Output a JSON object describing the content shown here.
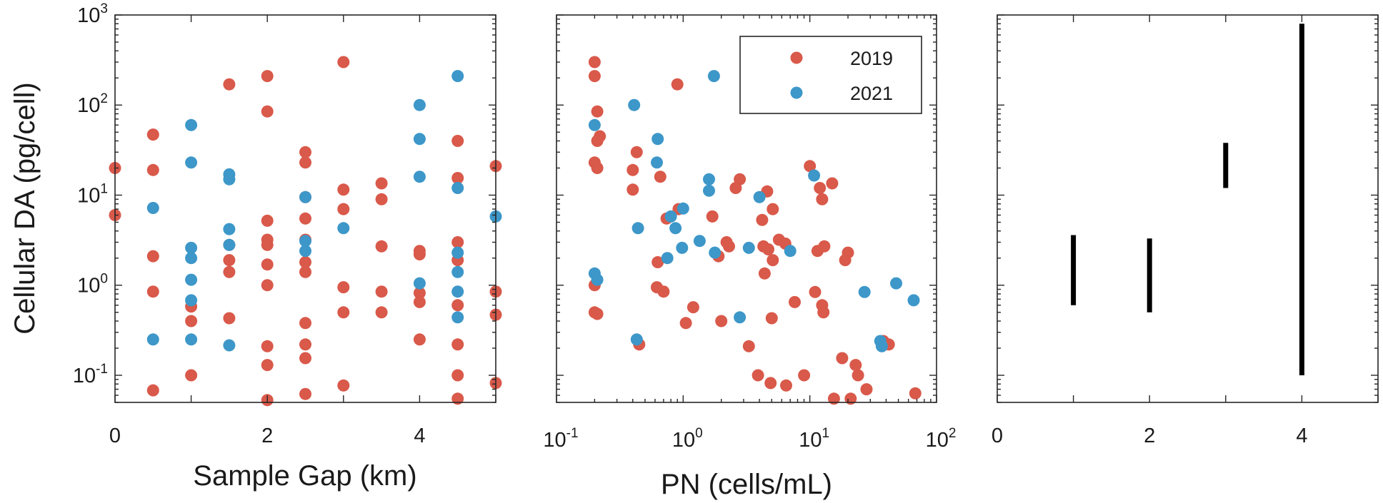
{
  "colors": {
    "2019": "#d9594a",
    "2021": "#3d97c9",
    "bar": "#000000",
    "axis": "#262626"
  },
  "legend": {
    "entries": [
      "2019",
      "2021"
    ],
    "placement": "top-right of middle panel"
  },
  "chart_data": [
    {
      "type": "scatter",
      "xlabel": "Sample Gap (km)",
      "ylabel": "Cellular DA (pg/cell)",
      "xlim": [
        0,
        5
      ],
      "ylim": [
        0.05,
        1000
      ],
      "yscale": "log",
      "xticks": [
        0,
        2,
        4
      ],
      "xtick_labels": [
        "0",
        "2",
        "4"
      ],
      "yticks": [
        0.1,
        1,
        10,
        100,
        1000
      ],
      "ytick_labels": [
        [
          "10",
          "-1"
        ],
        [
          "10",
          "0"
        ],
        [
          "10",
          "1"
        ],
        [
          "10",
          "2"
        ],
        [
          "10",
          "3"
        ]
      ],
      "series": [
        {
          "name": "2019",
          "points": [
            [
              0,
              20
            ],
            [
              0,
              6
            ],
            [
              0.5,
              47
            ],
            [
              0.5,
              19
            ],
            [
              0.5,
              2.1
            ],
            [
              0.5,
              0.85
            ],
            [
              0.5,
              0.068
            ],
            [
              1,
              0.58
            ],
            [
              1,
              0.4
            ],
            [
              1,
              0.1
            ],
            [
              1.5,
              170
            ],
            [
              1.5,
              2.8
            ],
            [
              1.5,
              1.9
            ],
            [
              1.5,
              1.4
            ],
            [
              1.5,
              0.43
            ],
            [
              2,
              210
            ],
            [
              2,
              85
            ],
            [
              2,
              5.2
            ],
            [
              2,
              3.2
            ],
            [
              2,
              2.8
            ],
            [
              2,
              1.7
            ],
            [
              2,
              1.0
            ],
            [
              2,
              0.21
            ],
            [
              2,
              0.13
            ],
            [
              2,
              0.053
            ],
            [
              2.5,
              30
            ],
            [
              2.5,
              23
            ],
            [
              2.5,
              9.5
            ],
            [
              2.5,
              5.5
            ],
            [
              2.5,
              3.2
            ],
            [
              2.5,
              1.8
            ],
            [
              2.5,
              1.4
            ],
            [
              2.5,
              0.38
            ],
            [
              2.5,
              0.22
            ],
            [
              2.5,
              0.155
            ],
            [
              2.5,
              0.062
            ],
            [
              3,
              300
            ],
            [
              3,
              11.5
            ],
            [
              3,
              7
            ],
            [
              3,
              0.95
            ],
            [
              3,
              0.5
            ],
            [
              3,
              0.077
            ],
            [
              3.5,
              13.5
            ],
            [
              3.5,
              9
            ],
            [
              3.5,
              2.7
            ],
            [
              3.5,
              0.85
            ],
            [
              3.5,
              0.5
            ],
            [
              4,
              2.4
            ],
            [
              4,
              2.2
            ],
            [
              4,
              0.82
            ],
            [
              4,
              0.65
            ],
            [
              4,
              0.25
            ],
            [
              4.5,
              40
            ],
            [
              4.5,
              15.5
            ],
            [
              4.5,
              3
            ],
            [
              4.5,
              1.9
            ],
            [
              4.5,
              0.6
            ],
            [
              4.5,
              0.22
            ],
            [
              4.5,
              0.1
            ],
            [
              4.5,
              0.055
            ],
            [
              5,
              21
            ],
            [
              5,
              0.85
            ],
            [
              5,
              0.47
            ],
            [
              5,
              0.082
            ]
          ]
        },
        {
          "name": "2021",
          "points": [
            [
              0.5,
              7.2
            ],
            [
              0.5,
              0.25
            ],
            [
              1,
              60
            ],
            [
              1,
              23
            ],
            [
              1,
              2.6
            ],
            [
              1,
              2.0
            ],
            [
              1,
              1.15
            ],
            [
              1,
              0.68
            ],
            [
              1,
              0.25
            ],
            [
              1.5,
              17
            ],
            [
              1.5,
              15
            ],
            [
              1.5,
              4.2
            ],
            [
              1.5,
              2.8
            ],
            [
              1.5,
              0.215
            ],
            [
              2.5,
              9.5
            ],
            [
              2.5,
              3.1
            ],
            [
              2.5,
              2.4
            ],
            [
              3,
              4.3
            ],
            [
              4,
              100
            ],
            [
              4,
              42
            ],
            [
              4,
              16
            ],
            [
              4,
              1.05
            ],
            [
              4.5,
              210
            ],
            [
              4.5,
              12
            ],
            [
              4.5,
              2.3
            ],
            [
              4.5,
              1.4
            ],
            [
              4.5,
              0.85
            ],
            [
              4.5,
              0.44
            ],
            [
              5,
              5.8
            ]
          ]
        }
      ]
    },
    {
      "type": "scatter",
      "xlabel": "PN (cells/mL)",
      "ylabel": "",
      "xscale": "log",
      "xlim": [
        0.1,
        100
      ],
      "ylim": [
        0.05,
        1000
      ],
      "yscale": "log",
      "xticks": [
        0.1,
        1,
        10,
        100
      ],
      "xtick_labels": [
        [
          "10",
          "-1"
        ],
        [
          "10",
          "0"
        ],
        [
          "10",
          "1"
        ],
        [
          "10",
          "2"
        ]
      ],
      "series": [
        {
          "name": "2019",
          "points": [
            [
              0.2,
              300
            ],
            [
              0.2,
              210
            ],
            [
              0.21,
              85
            ],
            [
              0.22,
              45
            ],
            [
              0.21,
              40
            ],
            [
              0.2,
              23
            ],
            [
              0.21,
              20
            ],
            [
              0.2,
              1.0
            ],
            [
              0.2,
              0.5
            ],
            [
              0.21,
              0.48
            ],
            [
              0.4,
              19
            ],
            [
              0.4,
              11.5
            ],
            [
              0.43,
              30
            ],
            [
              0.45,
              0.22
            ],
            [
              0.62,
              0.95
            ],
            [
              0.63,
              1.8
            ],
            [
              0.66,
              16
            ],
            [
              0.7,
              0.85
            ],
            [
              0.74,
              5.5
            ],
            [
              0.9,
              170
            ],
            [
              0.92,
              7
            ],
            [
              1.05,
              0.38
            ],
            [
              1.2,
              0.57
            ],
            [
              1.7,
              5.8
            ],
            [
              1.9,
              2.1
            ],
            [
              2.0,
              0.4
            ],
            [
              2.2,
              3.0
            ],
            [
              2.3,
              2.7
            ],
            [
              2.6,
              12
            ],
            [
              2.8,
              15
            ],
            [
              3.3,
              0.21
            ],
            [
              3.9,
              0.1
            ],
            [
              4.2,
              5.3
            ],
            [
              4.3,
              2.7
            ],
            [
              4.4,
              1.35
            ],
            [
              4.6,
              11
            ],
            [
              4.7,
              2.5
            ],
            [
              4.9,
              0.082
            ],
            [
              5.0,
              0.43
            ],
            [
              5.1,
              1.9
            ],
            [
              5.1,
              7
            ],
            [
              5.7,
              3.2
            ],
            [
              6.4,
              2.9
            ],
            [
              6.5,
              0.077
            ],
            [
              7.6,
              0.65
            ],
            [
              9.0,
              0.1
            ],
            [
              10,
              21
            ],
            [
              11,
              0.84
            ],
            [
              11.5,
              2.4
            ],
            [
              12,
              12
            ],
            [
              12.5,
              9
            ],
            [
              12.5,
              0.6
            ],
            [
              13,
              2.7
            ],
            [
              12.8,
              0.5
            ],
            [
              15,
              13.5
            ],
            [
              15.5,
              0.055
            ],
            [
              18,
              0.155
            ],
            [
              19,
              1.9
            ],
            [
              20,
              2.3
            ],
            [
              21,
              0.055
            ],
            [
              23,
              0.13
            ],
            [
              24,
              0.1
            ],
            [
              28,
              0.07
            ],
            [
              38,
              0.24
            ],
            [
              42,
              0.22
            ],
            [
              68,
              0.063
            ]
          ]
        },
        {
          "name": "2021",
          "points": [
            [
              0.2,
              60
            ],
            [
              0.2,
              1.35
            ],
            [
              0.21,
              1.15
            ],
            [
              0.41,
              100
            ],
            [
              0.44,
              4.3
            ],
            [
              0.43,
              0.25
            ],
            [
              0.63,
              42
            ],
            [
              0.62,
              23
            ],
            [
              0.75,
              2.0
            ],
            [
              0.8,
              5.8
            ],
            [
              0.87,
              4.3
            ],
            [
              0.98,
              2.6
            ],
            [
              1.0,
              7.1
            ],
            [
              1.35,
              3.1
            ],
            [
              1.6,
              15
            ],
            [
              1.6,
              11.2
            ],
            [
              1.75,
              210
            ],
            [
              1.78,
              2.3
            ],
            [
              2.8,
              0.44
            ],
            [
              3.3,
              2.6
            ],
            [
              4.0,
              9.5
            ],
            [
              7.0,
              2.4
            ],
            [
              10.8,
              16.5
            ],
            [
              27,
              0.84
            ],
            [
              36,
              0.24
            ],
            [
              37,
              0.21
            ],
            [
              48,
              1.05
            ],
            [
              66,
              0.68
            ]
          ]
        }
      ]
    },
    {
      "type": "range",
      "xlabel": "",
      "ylabel": "",
      "xlim": [
        0,
        5
      ],
      "ylim": [
        0.05,
        1000
      ],
      "yscale": "log",
      "xticks": [
        0,
        2,
        4
      ],
      "xtick_labels": [
        "0",
        "2",
        "4"
      ],
      "ranges": [
        {
          "x": 1,
          "low": 0.6,
          "high": 3.6
        },
        {
          "x": 2,
          "low": 0.5,
          "high": 3.3
        },
        {
          "x": 3,
          "low": 12,
          "high": 38
        },
        {
          "x": 4,
          "low": 0.1,
          "high": 800
        }
      ]
    }
  ]
}
